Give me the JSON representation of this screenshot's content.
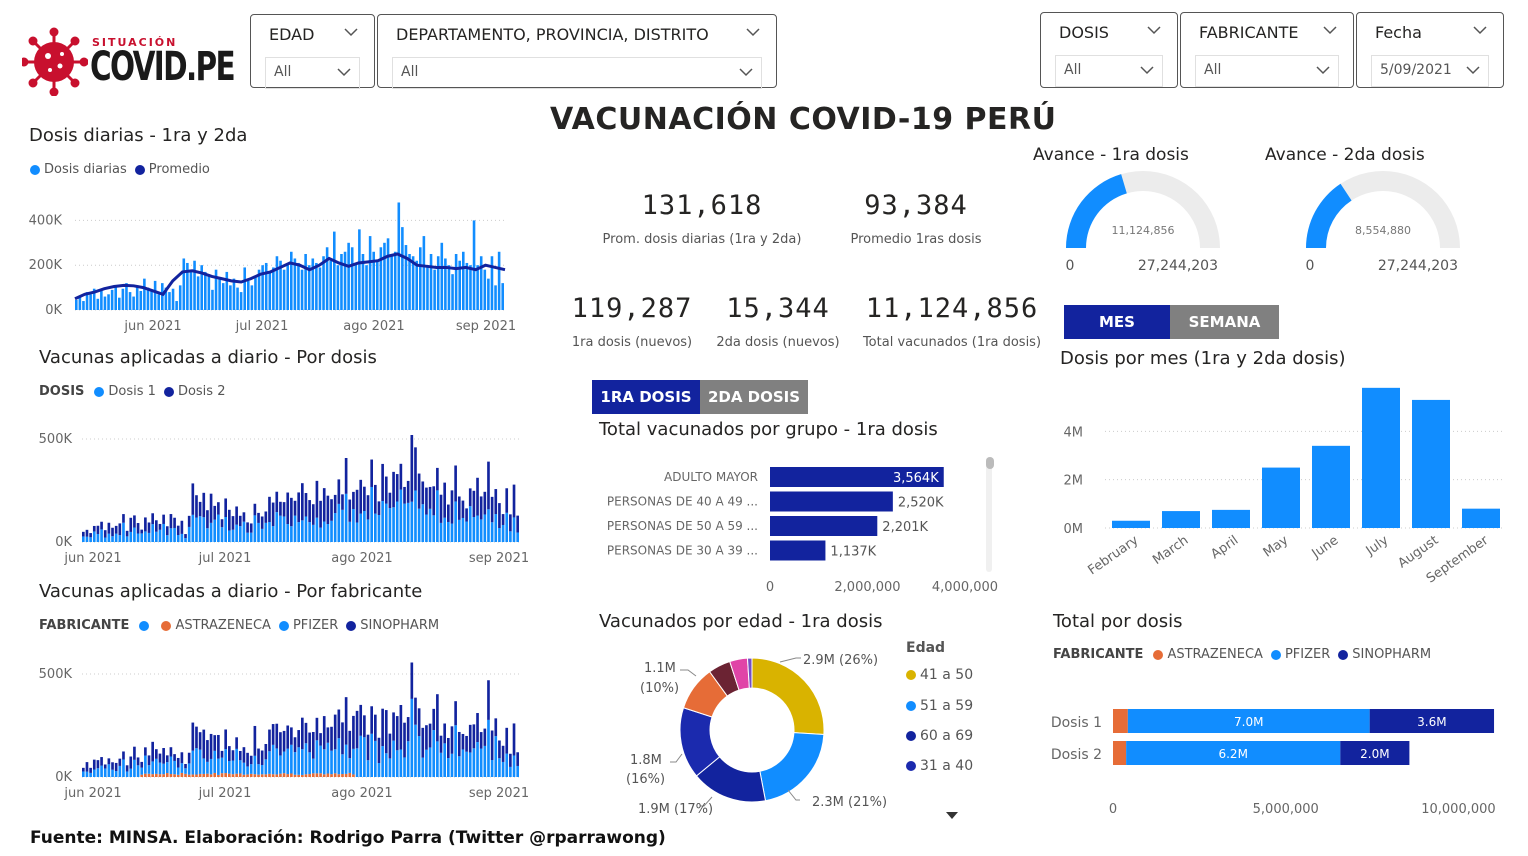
{
  "logo": {
    "small": "SITUACIÓN",
    "big": "COVID.PE"
  },
  "slicers": {
    "edad": {
      "title": "EDAD",
      "value": "All"
    },
    "departamento": {
      "title": "DEPARTAMENTO, PROVINCIA, DISTRITO",
      "value": "All"
    },
    "dosis": {
      "title": "DOSIS",
      "value": "All"
    },
    "fabricante": {
      "title": "FABRICANTE",
      "value": "All"
    },
    "fecha": {
      "title": "Fecha",
      "value": "5/09/2021"
    }
  },
  "main_title": "VACUNACIÓN COVID-19 PERÚ",
  "cards": {
    "prom_diarias": {
      "value": "131,618",
      "label": "Prom. dosis diarias (1ra y 2da)"
    },
    "prom_1ras": {
      "value": "93,384",
      "label": "Promedio 1ras dosis"
    },
    "nuevos_1ra": {
      "value": "119,287",
      "label": "1ra dosis (nuevos)"
    },
    "nuevos_2da": {
      "value": "15,344",
      "label": "2da dosis (nuevos)"
    },
    "total_1ra": {
      "value": "11,124,856",
      "label": "Total vacunados (1ra dosis)"
    }
  },
  "gauges": {
    "g1": {
      "title": "Avance - 1ra dosis",
      "value_label": "11,124,856",
      "min": "0",
      "max_label": "27,244,203",
      "value": 11124856,
      "max": 27244203
    },
    "g2": {
      "title": "Avance - 2da dosis",
      "value_label": "8,554,880",
      "min": "0",
      "max_label": "27,244,203",
      "value": 8554880,
      "max": 27244203
    }
  },
  "tabs_dosis": {
    "first": "1RA DOSIS",
    "second": "2DA DOSIS"
  },
  "tabs_periodo": {
    "mes": "MES",
    "semana": "SEMANA"
  },
  "titles": {
    "dosis_diarias": "Dosis diarias - 1ra y 2da",
    "por_dosis": "Vacunas aplicadas a diario - Por dosis",
    "por_fabricante": "Vacunas aplicadas a diario - Por fabricante",
    "por_grupo": "Total vacunados por grupo - 1ra dosis",
    "por_edad": "Vacunados por edad - 1ra dosis",
    "por_mes": "Dosis por mes (1ra y 2da dosis)",
    "total_dosis": "Total por dosis"
  },
  "legends": {
    "dosis_diarias": [
      "Dosis diarias",
      "Promedio"
    ],
    "por_dosis_title": "DOSIS",
    "por_dosis": [
      "Dosis 1",
      "Dosis 2"
    ],
    "fabricante_title": "FABRICANTE",
    "fabricante": [
      "",
      "ASTRAZENECA",
      "PFIZER",
      "SINOPHARM"
    ],
    "total_dosis": [
      "ASTRAZENECA",
      "PFIZER",
      "SINOPHARM"
    ],
    "edad_title": "Edad",
    "edad": [
      "41 a 50",
      "51 a 59",
      "60 a 69",
      "31 a 40"
    ]
  },
  "colors": {
    "light_blue": "#118DFF",
    "dark_blue": "#12239E",
    "orange": "#E66C37",
    "gold": "#D9B300",
    "gray": "#808080",
    "pink": "#E044A7",
    "maroon": "#6B007B"
  },
  "footer": "Fuente: MINSA. Elaboración: Rodrigo Parra (Twitter @rparrawong)",
  "chart_data": [
    {
      "id": "dosis_diarias",
      "type": "bar",
      "title": "Dosis diarias - 1ra y 2da",
      "x_ticks": [
        "jun 2021",
        "jul 2021",
        "ago 2021",
        "sep 2021"
      ],
      "y_ticks": [
        "400K",
        "200K",
        "0K"
      ],
      "ylim": [
        0,
        500000
      ],
      "series": [
        {
          "name": "Dosis diarias",
          "values": [
            45000,
            60000,
            40000,
            80000,
            70000,
            95000,
            50000,
            85000,
            60000,
            70000,
            90000,
            110000,
            55000,
            95000,
            120000,
            80000,
            60000,
            110000,
            85000,
            140000,
            100000,
            90000,
            130000,
            70000,
            120000,
            100000,
            80000,
            95000,
            40000,
            110000,
            230000,
            210000,
            180000,
            220000,
            150000,
            200000,
            170000,
            160000,
            90000,
            180000,
            140000,
            120000,
            170000,
            110000,
            140000,
            100000,
            80000,
            190000,
            130000,
            110000,
            150000,
            180000,
            200000,
            210000,
            170000,
            190000,
            240000,
            220000,
            180000,
            200000,
            260000,
            230000,
            210000,
            180000,
            250000,
            200000,
            230000,
            210000,
            190000,
            240000,
            280000,
            220000,
            350000,
            200000,
            250000,
            260000,
            300000,
            280000,
            210000,
            360000,
            250000,
            200000,
            330000,
            260000,
            220000,
            280000,
            300000,
            320000,
            240000,
            260000,
            480000,
            370000,
            290000,
            250000,
            240000,
            220000,
            280000,
            330000,
            200000,
            250000,
            180000,
            240000,
            300000,
            230000,
            200000,
            160000,
            250000,
            220000,
            260000,
            210000,
            200000,
            400000,
            200000,
            240000,
            180000,
            140000,
            240000,
            110000,
            260000,
            120000
          ]
        },
        {
          "name": "Promedio",
          "values": [
            50000,
            70000,
            80000,
            95000,
            105000,
            110000,
            108000,
            100000,
            85000,
            70000,
            130000,
            170000,
            175000,
            165000,
            150000,
            140000,
            130000,
            125000,
            140000,
            160000,
            170000,
            190000,
            210000,
            200000,
            180000,
            200000,
            230000,
            210000,
            195000,
            210000,
            215000,
            220000,
            240000,
            250000,
            230000,
            200000,
            195000,
            190000,
            190000,
            185000,
            190000,
            180000,
            200000,
            190000,
            180000
          ]
        }
      ]
    },
    {
      "id": "por_dosis",
      "type": "bar",
      "title": "Vacunas aplicadas a diario - Por dosis",
      "x_ticks": [
        "jun 2021",
        "jul 2021",
        "ago 2021",
        "sep 2021"
      ],
      "y_ticks": [
        "500K",
        "0K"
      ],
      "ylim": [
        0,
        500000
      ],
      "series": [
        {
          "name": "Dosis 1"
        },
        {
          "name": "Dosis 2"
        }
      ]
    },
    {
      "id": "por_fabricante",
      "type": "bar",
      "title": "Vacunas aplicadas a diario - Por fabricante",
      "x_ticks": [
        "jun 2021",
        "jul 2021",
        "ago 2021",
        "sep 2021"
      ],
      "y_ticks": [
        "500K",
        "0K"
      ],
      "ylim": [
        0,
        500000
      ],
      "series": [
        {
          "name": "ASTRAZENECA"
        },
        {
          "name": "PFIZER"
        },
        {
          "name": "SINOPHARM"
        }
      ]
    },
    {
      "id": "por_grupo",
      "type": "bar",
      "title": "Total vacunados por grupo - 1ra dosis",
      "categories": [
        "ADULTO MAYOR",
        "PERSONAS DE 40 A 49 ...",
        "PERSONAS DE 50 A 59 ...",
        "PERSONAS DE 30 A 39 ..."
      ],
      "values": [
        3564000,
        2520000,
        2201000,
        1137000
      ],
      "labels": [
        "3,564K",
        "2,520K",
        "2,201K",
        "1,137K"
      ],
      "x_ticks": [
        "0",
        "2,000,000",
        "4,000,000"
      ],
      "xlim": [
        0,
        4000000
      ]
    },
    {
      "id": "por_edad",
      "type": "pie",
      "title": "Vacunados por edad - 1ra dosis",
      "slices": [
        {
          "name": "41 a 50",
          "value": 26,
          "color": "#D9B300"
        },
        {
          "name": "51 a 59",
          "value": 21,
          "color": "#118DFF"
        },
        {
          "name": "60 a 69",
          "value": 17,
          "color": "#12239E"
        },
        {
          "name": "31 a 40",
          "value": 16,
          "color": "#1B2AAE"
        },
        {
          "name": "",
          "value": 10,
          "color": "#E66C37"
        },
        {
          "name": "",
          "value": 5,
          "color": "#6B2333"
        },
        {
          "name": "",
          "value": 4,
          "color": "#E044A7"
        },
        {
          "name": "",
          "value": 1,
          "color": "#744EC2"
        }
      ],
      "labels": [
        "2.9M (26%)",
        "2.3M (21%)",
        "1.9M (17%)",
        "1.8M",
        "(16%)",
        "1.1M",
        "(10%)"
      ]
    },
    {
      "id": "por_mes",
      "type": "bar",
      "title": "Dosis por mes (1ra y 2da dosis)",
      "categories": [
        "February",
        "March",
        "April",
        "May",
        "June",
        "July",
        "August",
        "September"
      ],
      "values": [
        300000,
        700000,
        750000,
        2500000,
        3400000,
        5800000,
        5300000,
        800000
      ],
      "y_ticks": [
        "4M",
        "2M",
        "0M"
      ],
      "ylim": [
        0,
        6000000
      ]
    },
    {
      "id": "total_dosis",
      "type": "bar",
      "title": "Total por dosis",
      "categories": [
        "Dosis 1",
        "Dosis 2"
      ],
      "series": [
        {
          "name": "ASTRAZENECA",
          "values": [
            430000,
            380000
          ]
        },
        {
          "name": "PFIZER",
          "values": [
            7000000,
            6200000
          ]
        },
        {
          "name": "SINOPHARM",
          "values": [
            3600000,
            2000000
          ]
        }
      ],
      "labels": [
        [
          "7.0M",
          "3.6M"
        ],
        [
          "6.2M",
          "2.0M"
        ]
      ],
      "x_ticks": [
        "0",
        "5,000,000",
        "10,000,000"
      ],
      "xlim": [
        0,
        11000000
      ]
    }
  ]
}
